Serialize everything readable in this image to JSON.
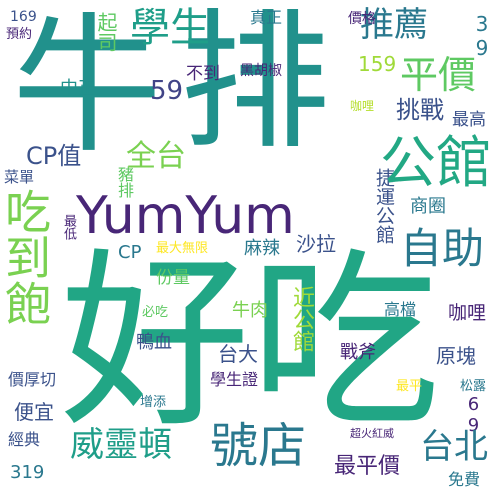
{
  "word_cloud": {
    "words": [
      {
        "id": "niu",
        "text": "牛",
        "color": "#21918c"
      },
      {
        "id": "pai",
        "text": "排",
        "color": "#21918c"
      },
      {
        "id": "haochi",
        "text": "好吃",
        "color": "#21a685"
      },
      {
        "id": "yumyum",
        "text": "YumYum",
        "color": "#482677"
      },
      {
        "id": "chidaobao",
        "text": "吃到飽",
        "color": "#7ad151"
      },
      {
        "id": "gongguan",
        "text": "公館",
        "color": "#22a884"
      },
      {
        "id": "pingjia",
        "text": "平價",
        "color": "#5ec962"
      },
      {
        "id": "tuijian",
        "text": "推薦",
        "color": "#2a788e"
      },
      {
        "id": "xuesheng",
        "text": "學生",
        "color": "#1f9e89"
      },
      {
        "id": "weilingdun",
        "text": "威靈頓",
        "color": "#1f9e89"
      },
      {
        "id": "haodian",
        "text": "號店",
        "color": "#2a788e"
      },
      {
        "id": "zizhu",
        "text": "自助",
        "color": "#2a788e"
      },
      {
        "id": "taibei",
        "text": "台北",
        "color": "#2a788e"
      },
      {
        "id": "quantai",
        "text": "全台",
        "color": "#7ad151"
      },
      {
        "id": "cpzhi",
        "text": "CP值",
        "color": "#3b528b"
      },
      {
        "id": "tiaozhan",
        "text": "挑戰",
        "color": "#3b528b"
      },
      {
        "id": "zuigao",
        "text": "最高",
        "color": "#3b528b"
      },
      {
        "id": "n59",
        "text": "59",
        "color": "#414487"
      },
      {
        "id": "budao",
        "text": "不到",
        "color": "#482677"
      },
      {
        "id": "n159",
        "text": "159",
        "color": "#a0da39"
      },
      {
        "id": "n39",
        "text": "39",
        "color": "#2a788e"
      },
      {
        "id": "n169",
        "text": "169",
        "color": "#3b528b"
      },
      {
        "id": "zhenzheng",
        "text": "真正",
        "color": "#2a788e"
      },
      {
        "id": "jiage",
        "text": "價格",
        "color": "#482677"
      },
      {
        "id": "heihujiao",
        "text": "黑胡椒",
        "color": "#482677"
      },
      {
        "id": "yueyue",
        "text": "預約",
        "color": "#482677"
      },
      {
        "id": "zhongzheng",
        "text": "中正",
        "color": "#21918c"
      },
      {
        "id": "jisi",
        "text": "起司",
        "color": "#5ec962"
      },
      {
        "id": "kali",
        "text": "咖哩",
        "color": "#b5de2b"
      },
      {
        "id": "caidan",
        "text": "菜單",
        "color": "#3b528b"
      },
      {
        "id": "zhupai",
        "text": "豬排",
        "color": "#5ec962"
      },
      {
        "id": "shangquan",
        "text": "商圈",
        "color": "#2a788e"
      },
      {
        "id": "jieyun",
        "text": "捷運公館",
        "color": "#3b528b"
      },
      {
        "id": "zuidi",
        "text": "最低",
        "color": "#482677"
      },
      {
        "id": "cp",
        "text": "CP",
        "color": "#2a788e"
      },
      {
        "id": "zuidawuxian",
        "text": "最大無限",
        "color": "#fde725"
      },
      {
        "id": "mala",
        "text": "麻辣",
        "color": "#2a788e"
      },
      {
        "id": "shala",
        "text": "沙拉",
        "color": "#3b528b"
      },
      {
        "id": "fenliang",
        "text": "份量",
        "color": "#5ec962"
      },
      {
        "id": "biechi",
        "text": "必吃",
        "color": "#5ec962"
      },
      {
        "id": "niurou",
        "text": "牛肉",
        "color": "#7ad151"
      },
      {
        "id": "jingongguan",
        "text": "近公館",
        "color": "#a0da39"
      },
      {
        "id": "gaodang",
        "text": "高檔",
        "color": "#2a788e"
      },
      {
        "id": "kali2",
        "text": "咖哩",
        "color": "#482677"
      },
      {
        "id": "yuankuai",
        "text": "原塊",
        "color": "#3b528b"
      },
      {
        "id": "yaxue",
        "text": "鴨血",
        "color": "#3b528b"
      },
      {
        "id": "taida",
        "text": "台大",
        "color": "#3b528b"
      },
      {
        "id": "zhanfu",
        "text": "戰斧",
        "color": "#482677"
      },
      {
        "id": "jiahouqie",
        "text": "價厚切",
        "color": "#3b528b"
      },
      {
        "id": "xueshengzheng",
        "text": "學生證",
        "color": "#482677"
      },
      {
        "id": "zuiping",
        "text": "最平",
        "color": "#fde725"
      },
      {
        "id": "n69",
        "text": "69",
        "color": "#482677"
      },
      {
        "id": "songlu",
        "text": "松露",
        "color": "#2a788e"
      },
      {
        "id": "pianyi",
        "text": "便宜",
        "color": "#3b528b"
      },
      {
        "id": "zengtian",
        "text": "增添",
        "color": "#2a788e"
      },
      {
        "id": "jingdian",
        "text": "經典",
        "color": "#3b528b"
      },
      {
        "id": "chaohuohongwei",
        "text": "超火紅威",
        "color": "#482677"
      },
      {
        "id": "n319",
        "text": "319",
        "color": "#2a788e"
      },
      {
        "id": "zuipingjia",
        "text": "最平價",
        "color": "#482677"
      },
      {
        "id": "mianfei",
        "text": "免費",
        "color": "#2a788e"
      }
    ]
  }
}
